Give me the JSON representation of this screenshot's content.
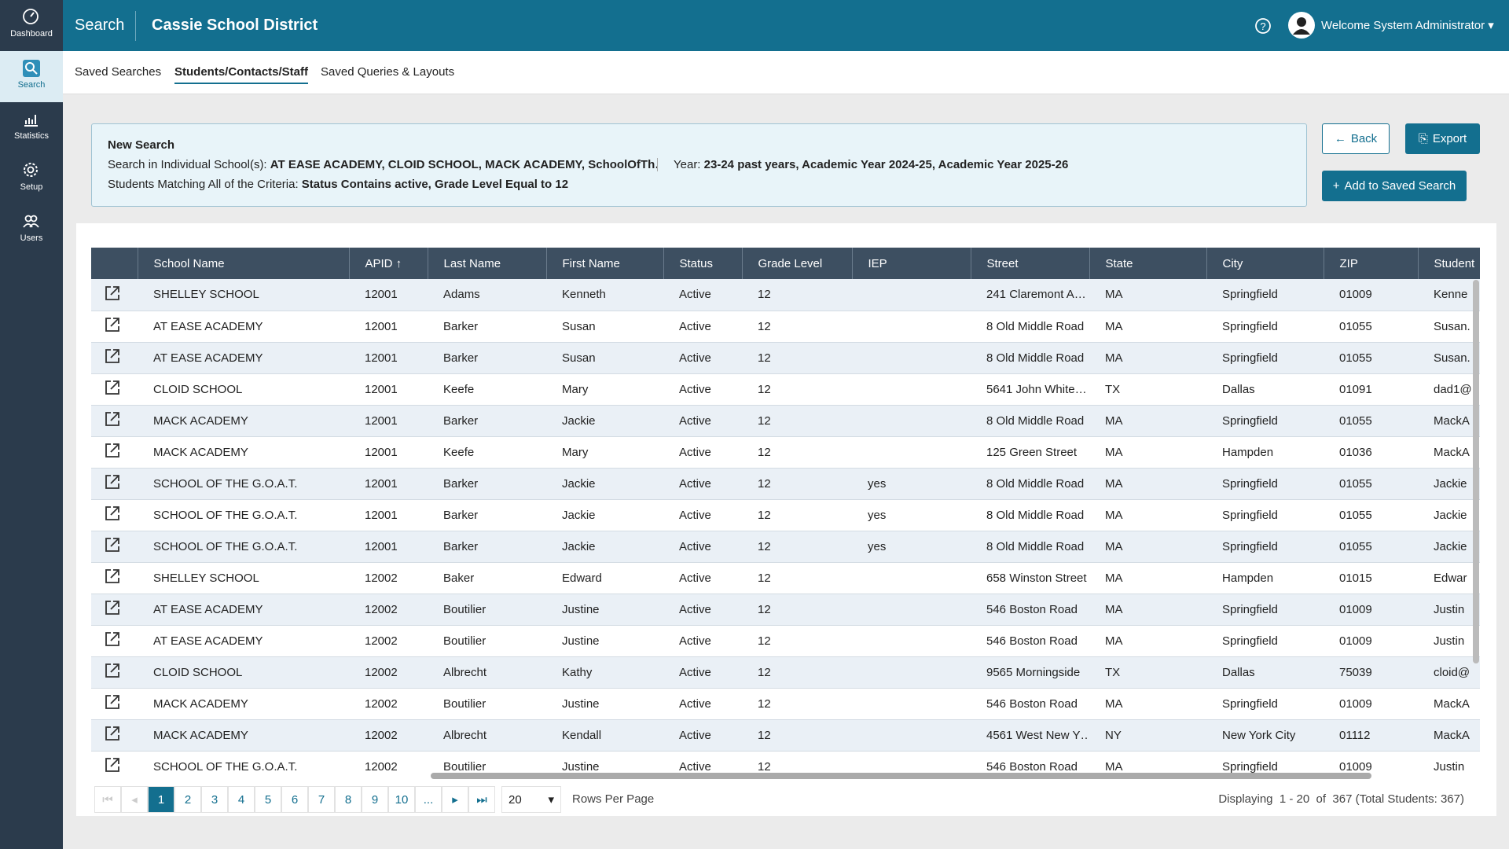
{
  "sidebar": {
    "items": [
      "Dashboard",
      "Search",
      "Statistics",
      "Setup",
      "Users"
    ]
  },
  "header": {
    "section": "Search",
    "district": "Cassie School District",
    "welcome": "Welcome System Administrator"
  },
  "tabs": [
    "Saved Searches",
    "Students/Contacts/Staff",
    "Saved Queries & Layouts"
  ],
  "summary": {
    "title": "New Search",
    "schools_label": "Search in Individual School(s):",
    "schools_value": "AT EASE ACADEMY, CLOID SCHOOL, MACK ACADEMY, SchoolOfTh…",
    "year_label": "Year:",
    "year_value": "23-24 past years, Academic Year 2024-25, Academic Year 2025-26",
    "criteria_label": "Students Matching All of the Criteria:",
    "criteria_value": "Status Contains active, Grade Level Equal to 12"
  },
  "buttons": {
    "back": "Back",
    "export": "Export",
    "add": "Add to Saved Search"
  },
  "table": {
    "columns": [
      "School Name",
      "APID",
      "Last Name",
      "First Name",
      "Status",
      "Grade Level",
      "IEP",
      "Street",
      "State",
      "City",
      "ZIP",
      "Student"
    ],
    "rows": [
      [
        "SHELLEY SCHOOL",
        "12001",
        "Adams",
        "Kenneth",
        "Active",
        "12",
        null,
        "241 Claremont A…",
        "MA",
        "Springfield",
        "01009",
        "Kenne"
      ],
      [
        "AT EASE ACADEMY",
        "12001",
        "Barker",
        "Susan",
        "Active",
        "12",
        null,
        "8 Old Middle Road",
        "MA",
        "Springfield",
        "01055",
        "Susan."
      ],
      [
        "AT EASE ACADEMY",
        "12001",
        "Barker",
        "Susan",
        "Active",
        "12",
        null,
        "8 Old Middle Road",
        "MA",
        "Springfield",
        "01055",
        "Susan."
      ],
      [
        "CLOID SCHOOL",
        "12001",
        "Keefe",
        "Mary",
        "Active",
        "12",
        null,
        "5641 John White…",
        "TX",
        "Dallas",
        "01091",
        "dad1@"
      ],
      [
        "MACK ACADEMY",
        "12001",
        "Barker",
        "Jackie",
        "Active",
        "12",
        null,
        "8 Old Middle Road",
        "MA",
        "Springfield",
        "01055",
        "MackA"
      ],
      [
        "MACK ACADEMY",
        "12001",
        "Keefe",
        "Mary",
        "Active",
        "12",
        null,
        "125 Green Street",
        "MA",
        "Hampden",
        "01036",
        "MackA"
      ],
      [
        "SCHOOL OF THE G.O.A.T.",
        "12001",
        "Barker",
        "Jackie",
        "Active",
        "12",
        "yes",
        "8 Old Middle Road",
        "MA",
        "Springfield",
        "01055",
        "Jackie"
      ],
      [
        "SCHOOL OF THE G.O.A.T.",
        "12001",
        "Barker",
        "Jackie",
        "Active",
        "12",
        "yes",
        "8 Old Middle Road",
        "MA",
        "Springfield",
        "01055",
        "Jackie"
      ],
      [
        "SCHOOL OF THE G.O.A.T.",
        "12001",
        "Barker",
        "Jackie",
        "Active",
        "12",
        "yes",
        "8 Old Middle Road",
        "MA",
        "Springfield",
        "01055",
        "Jackie"
      ],
      [
        "SHELLEY SCHOOL",
        "12002",
        "Baker",
        "Edward",
        "Active",
        "12",
        null,
        "658 Winston Street",
        "MA",
        "Hampden",
        "01015",
        "Edwar"
      ],
      [
        "AT EASE ACADEMY",
        "12002",
        "Boutilier",
        "Justine",
        "Active",
        "12",
        null,
        "546 Boston Road",
        "MA",
        "Springfield",
        "01009",
        "Justin"
      ],
      [
        "AT EASE ACADEMY",
        "12002",
        "Boutilier",
        "Justine",
        "Active",
        "12",
        null,
        "546 Boston Road",
        "MA",
        "Springfield",
        "01009",
        "Justin"
      ],
      [
        "CLOID SCHOOL",
        "12002",
        "Albrecht",
        "Kathy",
        "Active",
        "12",
        null,
        "9565 Morningside",
        "TX",
        "Dallas",
        "75039",
        "cloid@"
      ],
      [
        "MACK ACADEMY",
        "12002",
        "Boutilier",
        "Justine",
        "Active",
        "12",
        null,
        "546 Boston Road",
        "MA",
        "Springfield",
        "01009",
        "MackA"
      ],
      [
        "MACK ACADEMY",
        "12002",
        "Albrecht",
        "Kendall",
        "Active",
        "12",
        null,
        "4561 West New Y…",
        "NY",
        "New York City",
        "01112",
        "MackA"
      ],
      [
        "SCHOOL OF THE G.O.A.T.",
        "12002",
        "Boutilier",
        "Justine",
        "Active",
        "12",
        null,
        "546 Boston Road",
        "MA",
        "Springfield",
        "01009",
        "Justin"
      ]
    ]
  },
  "pagination": {
    "pages": [
      "1",
      "2",
      "3",
      "4",
      "5",
      "6",
      "7",
      "8",
      "9",
      "10",
      "..."
    ],
    "rows_per_page": "20",
    "rows_per_page_label": "Rows Per Page",
    "display": "Displaying  1 - 20  of  367 (Total Students: 367)"
  }
}
